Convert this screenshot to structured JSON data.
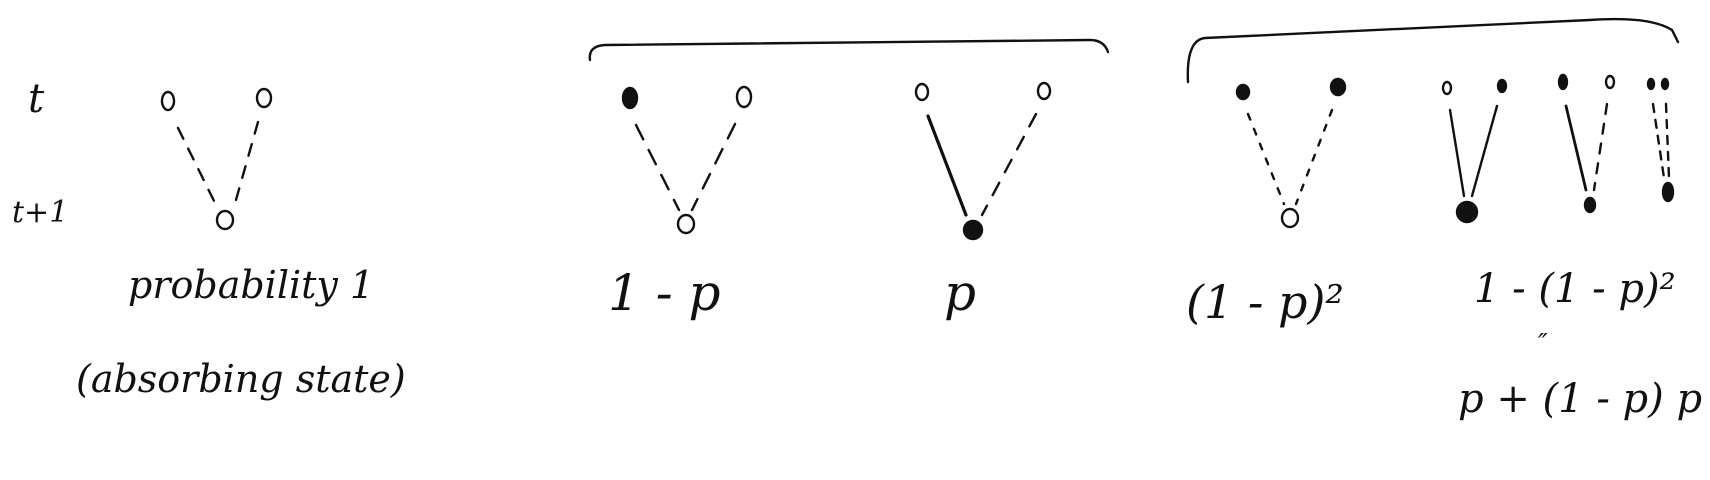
{
  "row_labels": {
    "t": "t",
    "t_plus_1": "t+1"
  },
  "panel1": {
    "label_line1": "probability 1",
    "label_line2": "(absorbing state)"
  },
  "panel2": {
    "case_open": "1 - p",
    "case_filled": "p"
  },
  "panel3": {
    "case_open": "(1 - p)²",
    "case_filled": "1 - (1 - p)²",
    "equals_mark": "″",
    "case_filled_alt": "p + (1 - p) p"
  }
}
